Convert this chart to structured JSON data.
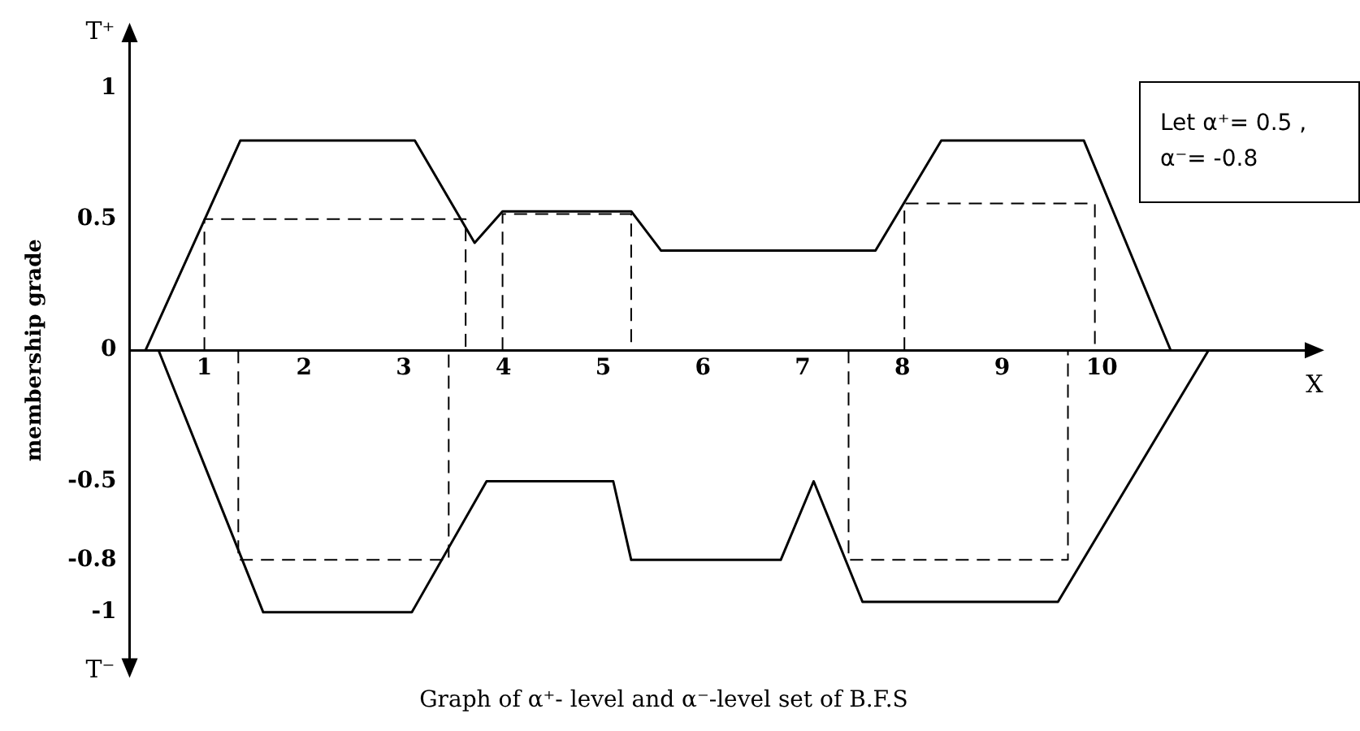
{
  "chart_data": {
    "type": "line",
    "title": "Graph of α⁺- level and α⁻-level set of B.F.S",
    "ylabel": "membership grade",
    "xlabel": "X",
    "annotations": [
      "T⁺",
      "T⁻",
      "Let α⁺= 0.5 ,\nα⁻= -0.8"
    ],
    "xlim": [
      0.25,
      12.1
    ],
    "xticks": [
      1,
      2,
      3,
      4,
      5,
      6,
      7,
      8,
      9,
      10
    ],
    "ylim": [
      -1.2,
      1.2
    ],
    "yticks": [
      -1,
      -0.8,
      -0.5,
      0,
      0.5,
      1
    ],
    "grid": false,
    "legend": false,
    "marker": "none",
    "series": [
      {
        "color": "#000000",
        "line_style": "solid",
        "x": [
          0.41,
          1.36,
          3.11,
          3.71,
          3.99,
          5.28,
          5.58,
          7.73,
          8.39,
          9.82,
          10.69
        ],
        "values": [
          0,
          0.8,
          0.8,
          0.41,
          0.53,
          0.53,
          0.38,
          0.38,
          0.8,
          0.8,
          0
        ]
      },
      {
        "color": "#000000",
        "line_style": "solid",
        "x": [
          0.54,
          1.59,
          3.08,
          3.83,
          5.1,
          5.28,
          6.78,
          7.11,
          7.6,
          9.56,
          11.07
        ],
        "values": [
          0,
          -1,
          -1,
          -0.5,
          -0.5,
          -0.8,
          -0.8,
          -0.5,
          -0.96,
          -0.96,
          0
        ]
      },
      {
        "color": "#000000",
        "line_style": "dashed",
        "x": [
          1,
          1,
          3.62,
          3.62
        ],
        "values": [
          0,
          0.5,
          0.5,
          0
        ]
      },
      {
        "color": "#000000",
        "line_style": "dashed",
        "x": [
          3.99,
          3.99,
          5.28,
          5.28
        ],
        "values": [
          0,
          0.52,
          0.52,
          0
        ]
      },
      {
        "color": "#000000",
        "line_style": "dashed",
        "x": [
          8.02,
          8.02,
          9.93,
          9.93
        ],
        "values": [
          0,
          0.56,
          0.56,
          0
        ]
      },
      {
        "color": "#000000",
        "line_style": "dashed",
        "x": [
          1.34,
          1.34,
          3.45,
          3.45
        ],
        "values": [
          0,
          -0.8,
          -0.8,
          0
        ]
      },
      {
        "color": "#000000",
        "line_style": "dashed",
        "x": [
          7.46,
          7.46,
          9.66,
          9.66
        ],
        "values": [
          0,
          -0.8,
          -0.8,
          0
        ]
      }
    ]
  }
}
